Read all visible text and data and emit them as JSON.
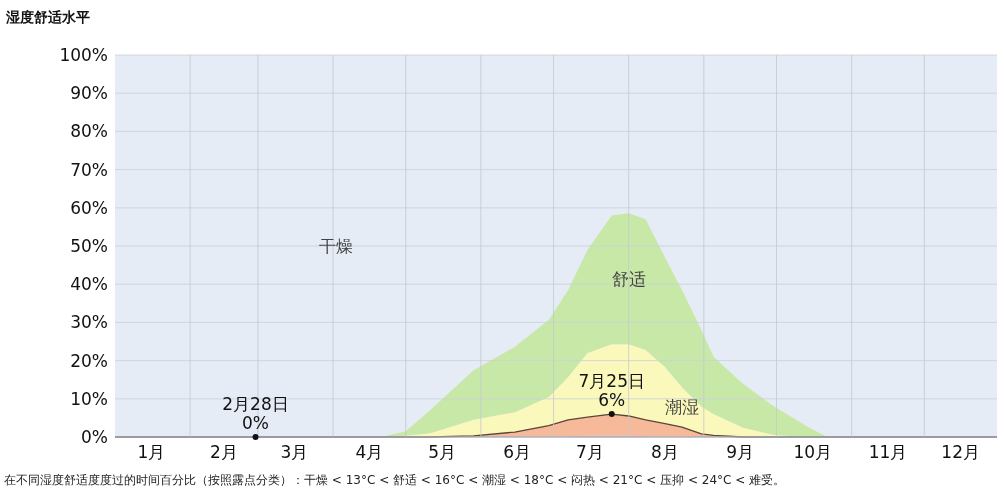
{
  "chart_data": {
    "type": "area",
    "stacked": true,
    "title": "湿度舒适水平",
    "x": [
      "--01-01",
      "--04-21",
      "--05-01",
      "--05-11",
      "--05-29",
      "--06-15",
      "--06-29",
      "--07-07",
      "--07-15",
      "--07-25",
      "--08-01",
      "--08-08",
      "--08-16",
      "--08-23",
      "--08-31",
      "--09-05",
      "--09-17",
      "--09-30",
      "--10-14",
      "--10-22",
      "--12-31"
    ],
    "series": [
      {
        "color": "#f2a6c4",
        "values": [
          0,
          0,
          0,
          0,
          0,
          0,
          0,
          0.2,
          0.3,
          0.3,
          0.3,
          0.2,
          0,
          0,
          0,
          0,
          0,
          0,
          0,
          0,
          0
        ]
      },
      {
        "color": "#f6b99a",
        "values": [
          0,
          0,
          0,
          0,
          0.3,
          1.3,
          3,
          4.3,
          4.9,
          5.7,
          5.2,
          4.3,
          3.5,
          2.6,
          0.8,
          0.4,
          0,
          0,
          0,
          0,
          0
        ]
      },
      {
        "name": "潮湿",
        "color": "#fbf8bc",
        "values": [
          0,
          0,
          0.3,
          1,
          4.2,
          5.2,
          7.5,
          11.2,
          16.8,
          18.3,
          18.8,
          18.3,
          14.8,
          10.4,
          7.2,
          5.6,
          2.5,
          0.5,
          0,
          0,
          0
        ]
      },
      {
        "name": "舒适",
        "color": "#c8e8a8",
        "values": [
          0,
          0,
          1.2,
          6,
          13,
          17.1,
          20.1,
          22.8,
          27,
          33.7,
          34.3,
          34.2,
          28.7,
          25.5,
          20,
          15,
          11.5,
          7.5,
          2.6,
          0,
          0
        ]
      }
    ],
    "xlim": [
      "--01-01",
      "--12-31"
    ],
    "xticks": [
      {
        "value": "--02-01",
        "label": null
      },
      {
        "value": "--03-01",
        "label": null
      },
      {
        "value": "--04-01",
        "label": null
      },
      {
        "value": "--05-01",
        "label": null
      },
      {
        "value": "--06-01",
        "label": null
      },
      {
        "value": "--07-01",
        "label": null
      },
      {
        "value": "--08-01",
        "label": null
      },
      {
        "value": "--09-01",
        "label": null
      },
      {
        "value": "--10-01",
        "label": null
      },
      {
        "value": "--11-01",
        "label": null
      },
      {
        "value": "--12-01",
        "label": null
      },
      {
        "value": "--01-16",
        "label": "1月"
      },
      {
        "value": "--02-15",
        "label": "2月"
      },
      {
        "value": "--03-16",
        "label": "3月"
      },
      {
        "value": "--04-16",
        "label": "4月"
      },
      {
        "value": "--05-16",
        "label": "5月"
      },
      {
        "value": "--06-16",
        "label": "6月"
      },
      {
        "value": "--07-16",
        "label": "7月"
      },
      {
        "value": "--08-16",
        "label": "8月"
      },
      {
        "value": "--09-16",
        "label": "9月"
      },
      {
        "value": "--10-16",
        "label": "10月"
      },
      {
        "value": "--11-16",
        "label": "11月"
      },
      {
        "value": "--12-16",
        "label": "12月"
      }
    ],
    "ylim": [
      0,
      100
    ],
    "yticks": [
      {
        "value": 0,
        "label": "0%"
      },
      {
        "value": 10,
        "label": "10%"
      },
      {
        "value": 20,
        "label": "20%"
      },
      {
        "value": 30,
        "label": "30%"
      },
      {
        "value": 40,
        "label": "40%"
      },
      {
        "value": 50,
        "label": "50%"
      },
      {
        "value": 60,
        "label": "60%"
      },
      {
        "value": 70,
        "label": "70%"
      },
      {
        "value": 80,
        "label": "80%"
      },
      {
        "value": 90,
        "label": "90%"
      },
      {
        "value": 100,
        "label": "100%"
      }
    ],
    "grid": true,
    "annotations": [
      "干燥",
      {
        "text": "2月28日\n0%",
        "x": "--02-28",
        "y": 0
      },
      {
        "text": "7月25日\n6%",
        "x": "--07-25",
        "y": 6
      },
      "在不同湿度舒适度度过的时间百分比（按照露点分类）：干燥 < 13°C < 舒适 < 16°C < 潮湿 < 18°C < 闷热 < 21°C < 压抑 < 24°C < 难受。"
    ]
  }
}
